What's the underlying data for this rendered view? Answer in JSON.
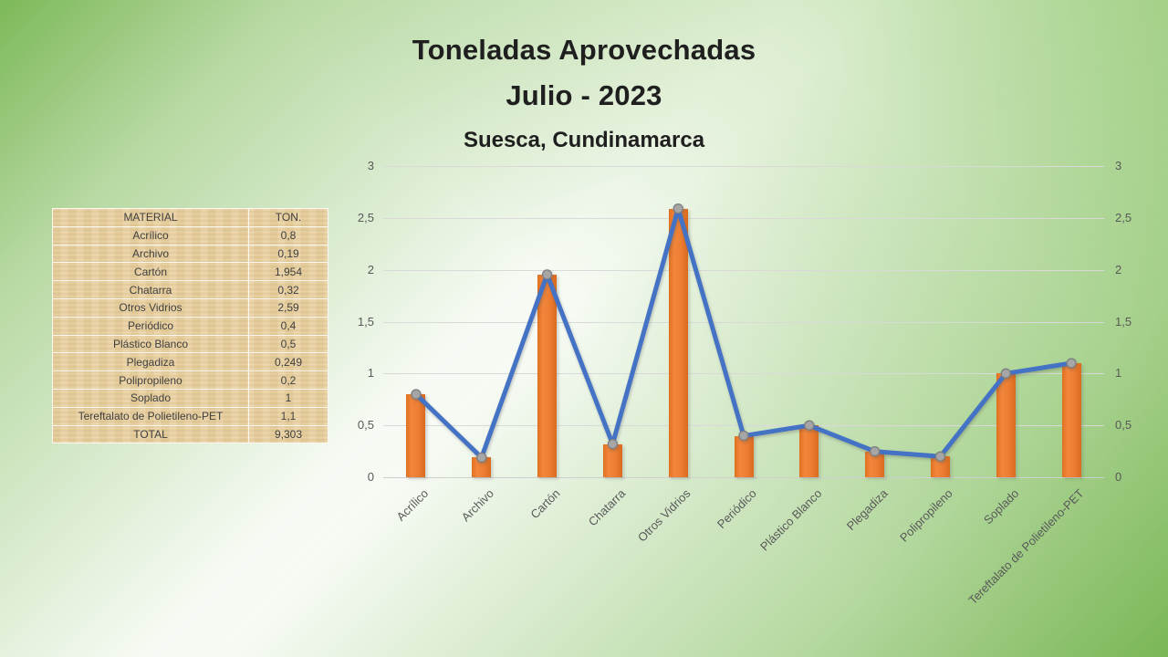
{
  "slide": {
    "title_line1": "Toneladas Aprovechadas",
    "title_line2": "Julio - 2023",
    "subtitle": "Suesca, Cundinamarca"
  },
  "table": {
    "headers": [
      "MATERIAL",
      "TON."
    ],
    "rows": [
      [
        "Acrílico",
        "0,8"
      ],
      [
        "Archivo",
        "0,19"
      ],
      [
        "Cartón",
        "1,954"
      ],
      [
        "Chatarra",
        "0,32"
      ],
      [
        "Otros Vidrios",
        "2,59"
      ],
      [
        "Periódico",
        "0,4"
      ],
      [
        "Plástico Blanco",
        "0,5"
      ],
      [
        "Plegadiza",
        "0,249"
      ],
      [
        "Polipropileno",
        "0,2"
      ],
      [
        "Soplado",
        "1"
      ],
      [
        "Tereftalato de Polietileno-PET",
        "1,1"
      ],
      [
        "TOTAL",
        "9,303"
      ]
    ]
  },
  "chart_data": {
    "type": "bar",
    "subtype": "combo-bar-line",
    "title": "Toneladas Aprovechadas Julio - 2023, Suesca, Cundinamarca",
    "categories": [
      "Acrílico",
      "Archivo",
      "Cartón",
      "Chatarra",
      "Otros Vidrios",
      "Periódico",
      "Plástico Blanco",
      "Plegadiza",
      "Polipropileno",
      "Soplado",
      "Tereftalato de Polietileno-PET"
    ],
    "series": [
      {
        "name": "Toneladas (barras)",
        "type": "bar",
        "color": "#ED7D31",
        "values": [
          0.8,
          0.19,
          1.954,
          0.32,
          2.59,
          0.4,
          0.5,
          0.249,
          0.2,
          1,
          1.1
        ]
      },
      {
        "name": "Toneladas (línea)",
        "type": "line",
        "color": "#4472C4",
        "marker_color": "#A6A6A6",
        "marker_outline": "#7F7F7F",
        "values": [
          0.8,
          0.19,
          1.954,
          0.32,
          2.59,
          0.4,
          0.5,
          0.249,
          0.2,
          1,
          1.1
        ]
      }
    ],
    "xlabel": "",
    "ylabel": "",
    "ylim": [
      0,
      3
    ],
    "ytick_step": 0.5,
    "ytick_labels_top_to_bottom": [
      "3",
      "2,5",
      "2",
      "1,5",
      "1",
      "0,5",
      "0"
    ],
    "grid": true,
    "gridline_color": "#D9D9D9",
    "dual_axis": true,
    "legend": "none"
  },
  "colors": {
    "background_green": "#76B450",
    "bar_orange": "#ED7D31",
    "line_blue": "#4472C4",
    "marker_gray": "#A6A6A6",
    "table_tan": "#E8D09F",
    "axis_text": "#595959",
    "title_text": "#1F1F1F"
  }
}
